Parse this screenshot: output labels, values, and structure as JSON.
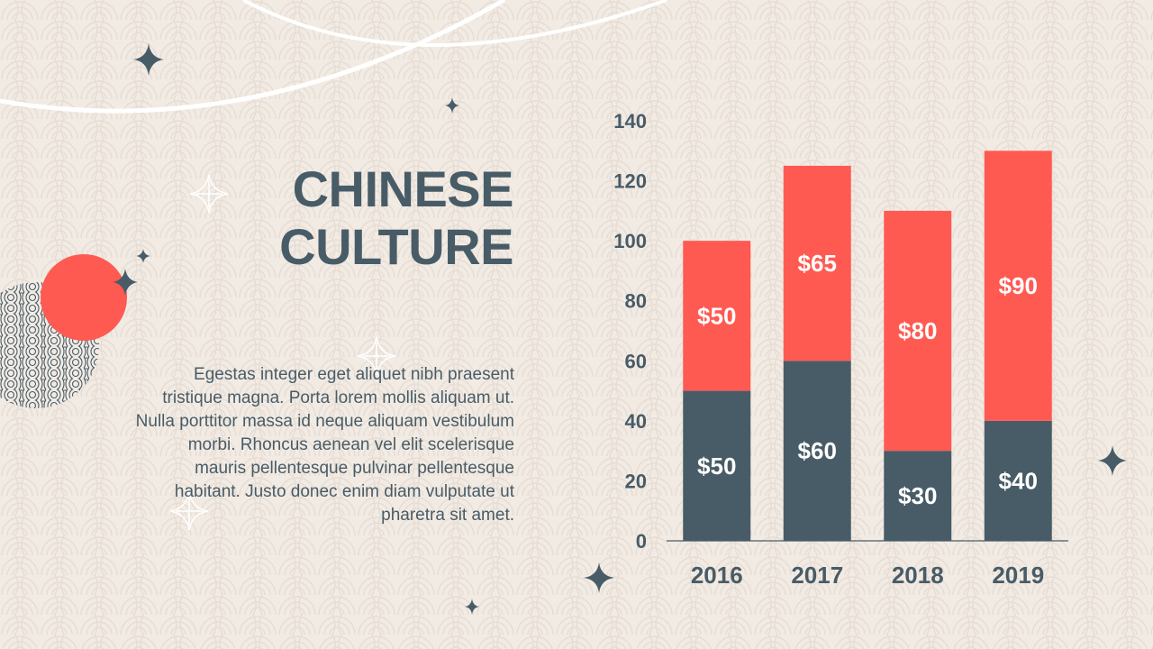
{
  "slide": {
    "title_line1": "CHINESE",
    "title_line2": "CULTURE",
    "body": "Egestas integer eget aliquet nibh praesent tristique magna. Porta lorem mollis aliquam ut. Nulla porttitor massa id neque aliquam vestibulum morbi. Rhoncus aenean vel elit scelerisque mauris pellentesque pulvinar pellentesque habitant. Justo donec enim diam vulputate ut pharetra sit amet."
  },
  "colors": {
    "background": "#f2ebe4",
    "dark": "#485c67",
    "accent": "#ff5a52",
    "pattern": "#e4dbd2"
  },
  "icons": [
    "four-point-star-icon",
    "outline-star-icon",
    "red-circle-icon",
    "wave-pattern-circle-icon"
  ],
  "chart_data": {
    "type": "bar",
    "stacked": true,
    "categories": [
      "2016",
      "2017",
      "2018",
      "2019"
    ],
    "series": [
      {
        "values": [
          50,
          60,
          30,
          40
        ],
        "labels": [
          "$50",
          "$60",
          "$30",
          "$40"
        ],
        "color": "#485c67"
      },
      {
        "values": [
          50,
          65,
          80,
          90
        ],
        "labels": [
          "$50",
          "$65",
          "$80",
          "$90"
        ],
        "color": "#ff5a52"
      }
    ],
    "yticks": [
      "0",
      "20",
      "40",
      "60",
      "80",
      "100",
      "120",
      "140"
    ],
    "ylim": [
      0,
      140
    ],
    "grid": false,
    "legend": "none"
  }
}
